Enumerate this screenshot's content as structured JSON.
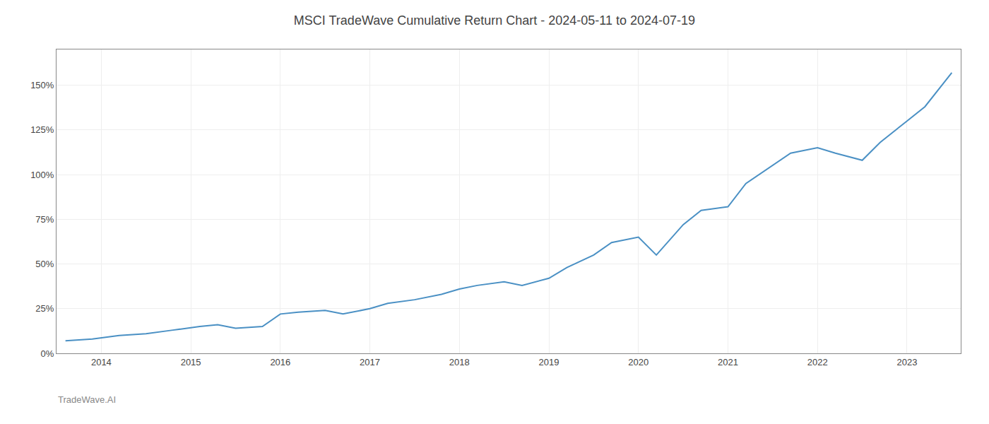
{
  "chart_data": {
    "type": "line",
    "title": "MSCI TradeWave Cumulative Return Chart - 2024-05-11 to 2024-07-19",
    "annotations": [
      "TradeWave.AI"
    ],
    "color": "#4a90c4",
    "grid": true,
    "x": [
      2013.6,
      2013.9,
      2014.2,
      2014.5,
      2014.8,
      2015.1,
      2015.3,
      2015.5,
      2015.8,
      2016.0,
      2016.2,
      2016.5,
      2016.7,
      2017.0,
      2017.2,
      2017.5,
      2017.8,
      2018.0,
      2018.2,
      2018.5,
      2018.7,
      2019.0,
      2019.2,
      2019.5,
      2019.7,
      2020.0,
      2020.2,
      2020.5,
      2020.7,
      2021.0,
      2021.2,
      2021.5,
      2021.7,
      2022.0,
      2022.2,
      2022.5,
      2022.7,
      2023.0,
      2023.2,
      2023.5
    ],
    "values": [
      7,
      8,
      10,
      11,
      13,
      15,
      16,
      14,
      15,
      22,
      23,
      24,
      22,
      25,
      28,
      30,
      33,
      36,
      38,
      40,
      38,
      42,
      48,
      55,
      62,
      65,
      55,
      72,
      80,
      82,
      95,
      105,
      112,
      115,
      112,
      108,
      118,
      130,
      138,
      157
    ],
    "xlim": [
      2013.5,
      2023.6
    ],
    "xticks": [
      2014,
      2015,
      2016,
      2017,
      2018,
      2019,
      2020,
      2021,
      2022,
      2023
    ],
    "ylim": [
      0,
      170
    ],
    "yticks": [
      {
        "value": 0,
        "label": "0%"
      },
      {
        "value": 25,
        "label": "25%"
      },
      {
        "value": 50,
        "label": "50%"
      },
      {
        "value": 75,
        "label": "75%"
      },
      {
        "value": 100,
        "label": "100%"
      },
      {
        "value": 125,
        "label": "125%"
      },
      {
        "value": 150,
        "label": "150%"
      }
    ]
  }
}
